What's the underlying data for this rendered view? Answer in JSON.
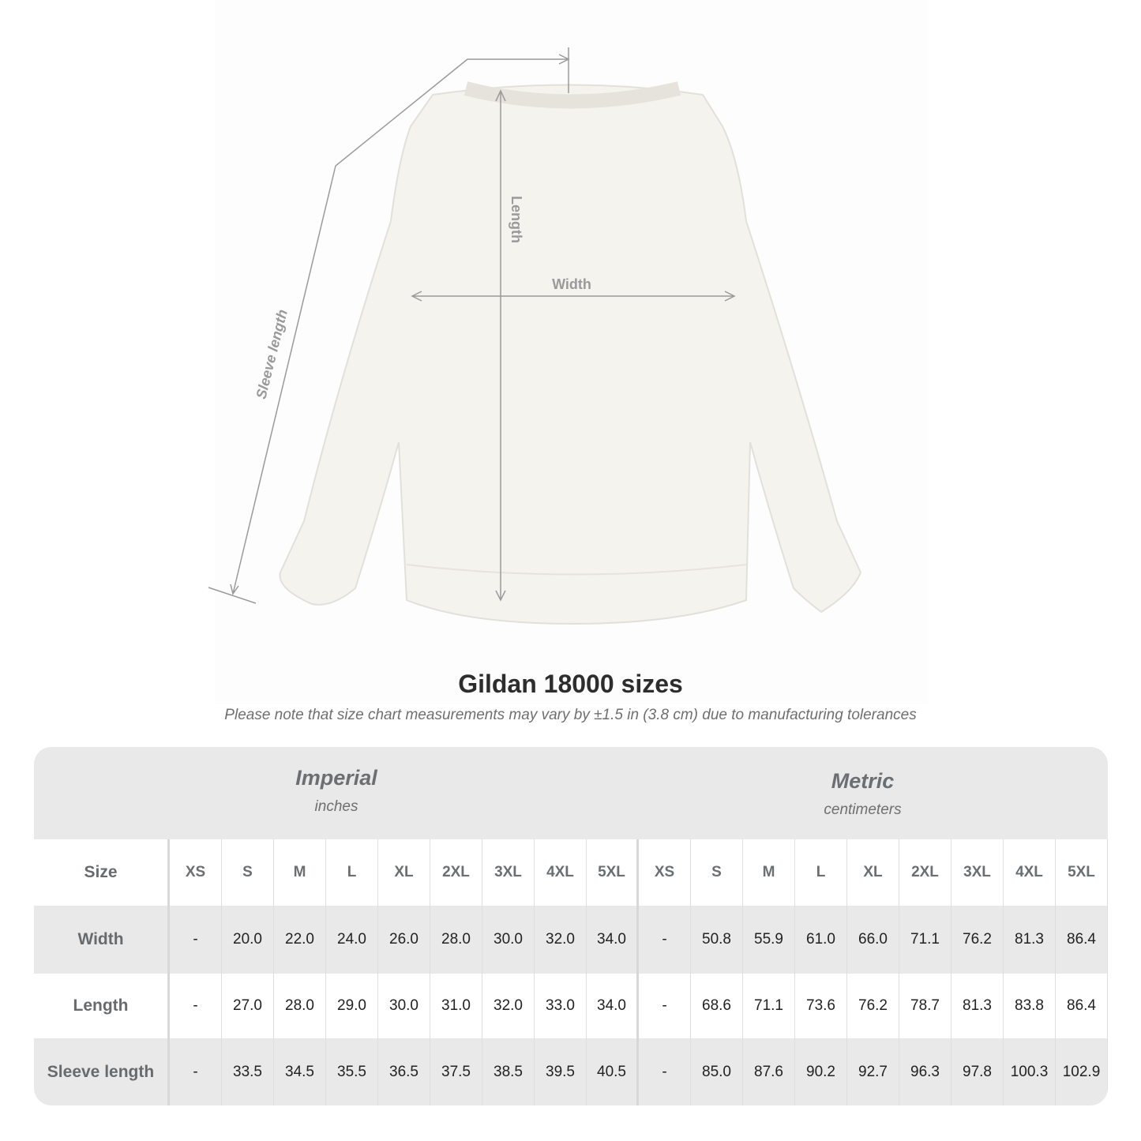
{
  "diagram": {
    "labels": {
      "length": "Length",
      "width": "Width",
      "sleeve": "Sleeve length"
    },
    "garment_color": "#f7f5f0",
    "line_color": "#9a9a9a"
  },
  "title": "Gildan 18000 sizes",
  "subtitle": "Please note that size chart measurements may vary by ±1.5 in (3.8 cm) due to manufacturing tolerances",
  "table": {
    "imperial": {
      "heading": "Imperial",
      "unit": "inches"
    },
    "metric": {
      "heading": "Metric",
      "unit": "centimeters"
    },
    "size_label": "Size",
    "sizes": [
      "XS",
      "S",
      "M",
      "L",
      "XL",
      "2XL",
      "3XL",
      "4XL",
      "5XL"
    ],
    "rows": [
      {
        "label": "Width",
        "imperial": [
          "-",
          "20.0",
          "22.0",
          "24.0",
          "26.0",
          "28.0",
          "30.0",
          "32.0",
          "34.0"
        ],
        "metric": [
          "-",
          "50.8",
          "55.9",
          "61.0",
          "66.0",
          "71.1",
          "76.2",
          "81.3",
          "86.4"
        ]
      },
      {
        "label": "Length",
        "imperial": [
          "-",
          "27.0",
          "28.0",
          "29.0",
          "30.0",
          "31.0",
          "32.0",
          "33.0",
          "34.0"
        ],
        "metric": [
          "-",
          "68.6",
          "71.1",
          "73.6",
          "76.2",
          "78.7",
          "81.3",
          "83.8",
          "86.4"
        ]
      },
      {
        "label": "Sleeve length",
        "imperial": [
          "-",
          "33.5",
          "34.5",
          "35.5",
          "36.5",
          "37.5",
          "38.5",
          "39.5",
          "40.5"
        ],
        "metric": [
          "-",
          "85.0",
          "87.6",
          "90.2",
          "92.7",
          "96.3",
          "97.8",
          "100.3",
          "102.9"
        ]
      }
    ]
  }
}
